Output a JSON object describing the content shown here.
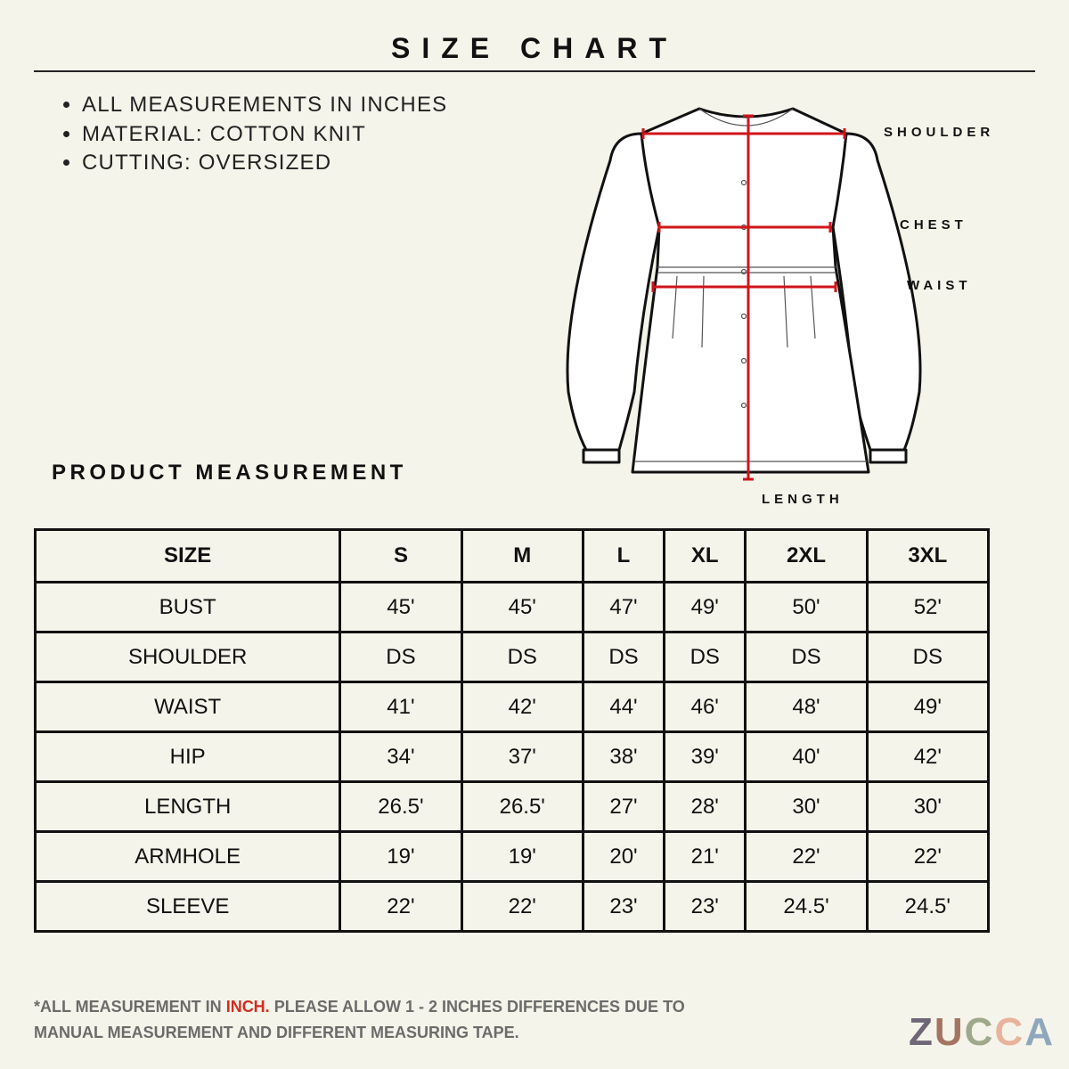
{
  "header": {
    "title": "SIZE CHART"
  },
  "notes": [
    "ALL MEASUREMENTS IN INCHES",
    "MATERIAL: COTTON KNIT",
    "CUTTING: OVERSIZED"
  ],
  "diagram": {
    "labels": {
      "shoulder": "SHOULDER",
      "chest": "CHEST",
      "waist": "WAIST",
      "length": "LENGTH"
    }
  },
  "section_title": "PRODUCT MEASUREMENT",
  "table": {
    "header": [
      "SIZE",
      "S",
      "M",
      "L",
      "XL",
      "2XL",
      "3XL"
    ],
    "rows": [
      [
        "BUST",
        "45'",
        "45'",
        "47'",
        "49'",
        "50'",
        "52'"
      ],
      [
        "SHOULDER",
        "DS",
        "DS",
        "DS",
        "DS",
        "DS",
        "DS"
      ],
      [
        "WAIST",
        "41'",
        "42'",
        "44'",
        "46'",
        "48'",
        "49'"
      ],
      [
        "HIP",
        "34'",
        "37'",
        "38'",
        "39'",
        "40'",
        "42'"
      ],
      [
        "LENGTH",
        "26.5'",
        "26.5'",
        "27'",
        "28'",
        "30'",
        "30'"
      ],
      [
        "ARMHOLE",
        "19'",
        "19'",
        "20'",
        "21'",
        "22'",
        "22'"
      ],
      [
        "SLEEVE",
        "22'",
        "22'",
        "23'",
        "23'",
        "24.5'",
        "24.5'"
      ]
    ]
  },
  "footer": {
    "before": "*ALL MEASUREMENT IN ",
    "highlight": "INCH.",
    "after": " PLEASE ALLOW 1 - 2 INCHES DIFFERENCES DUE TO MANUAL MEASUREMENT AND DIFFERENT MEASURING TAPE."
  },
  "logo": "ZUCCA"
}
